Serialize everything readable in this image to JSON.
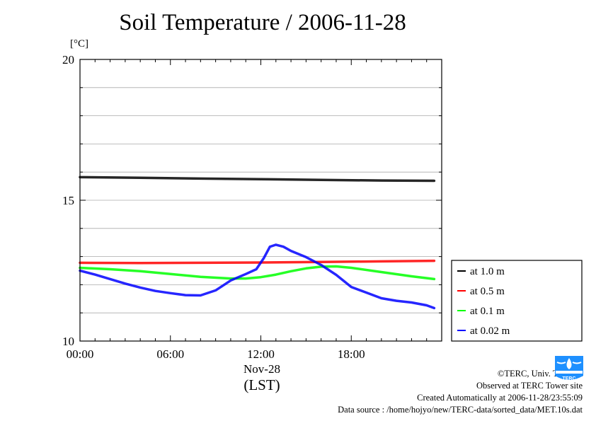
{
  "title": "Soil Temperature / 2006-11-28",
  "unit": "[°C]",
  "chart_data": {
    "type": "line",
    "title": "Soil Temperature / 2006-11-28",
    "ylabel": "[°C]",
    "xlabel": "Nov-28",
    "xlabel_sub": "(LST)",
    "ylim": [
      10,
      20
    ],
    "xlim": [
      0,
      24
    ],
    "yticks": [
      10,
      15,
      20
    ],
    "xticks": [
      0,
      6,
      12,
      18
    ],
    "xtick_labels": [
      "00:00",
      "06:00",
      "12:00",
      "18:00"
    ],
    "grid": true,
    "legend_position": "right",
    "series": [
      {
        "name": "at 1.0 m",
        "color": "#000000",
        "x": [
          0,
          4,
          8,
          12,
          16,
          20,
          23.5
        ],
        "y": [
          15.82,
          15.8,
          15.77,
          15.75,
          15.72,
          15.7,
          15.69
        ]
      },
      {
        "name": "at 0.5 m",
        "color": "#ff0000",
        "x": [
          0,
          4,
          8,
          12,
          16,
          20,
          23.5
        ],
        "y": [
          12.78,
          12.77,
          12.78,
          12.79,
          12.81,
          12.83,
          12.85
        ]
      },
      {
        "name": "at 0.1 m",
        "color": "#00ff00",
        "x": [
          0,
          2,
          4,
          6,
          8,
          10,
          11,
          12,
          13,
          14,
          15,
          16,
          17,
          18,
          20,
          22,
          23.5
        ],
        "y": [
          12.6,
          12.55,
          12.48,
          12.38,
          12.28,
          12.22,
          12.22,
          12.27,
          12.36,
          12.48,
          12.58,
          12.64,
          12.65,
          12.6,
          12.45,
          12.3,
          12.2
        ]
      },
      {
        "name": "at 0.02 m",
        "color": "#0000ff",
        "x": [
          0,
          1,
          2,
          3,
          4,
          5,
          6,
          7,
          8,
          9,
          10,
          11,
          11.7,
          12.2,
          12.6,
          13,
          13.5,
          14,
          15,
          16,
          17,
          18,
          19,
          20,
          21,
          22,
          23,
          23.5
        ],
        "y": [
          12.5,
          12.36,
          12.2,
          12.04,
          11.9,
          11.78,
          11.7,
          11.63,
          11.62,
          11.8,
          12.15,
          12.38,
          12.55,
          12.95,
          13.35,
          13.42,
          13.35,
          13.2,
          12.98,
          12.7,
          12.35,
          11.92,
          11.72,
          11.52,
          11.43,
          11.37,
          11.27,
          11.17
        ]
      }
    ]
  },
  "credits": {
    "copyright": "©TERC, Univ. Tsukuba",
    "observed": "Observed at TERC Tower site",
    "created": "Created Automatically at 2006-11-28/23:55:09",
    "source": "Data source : /home/hojyo/new/TERC-data/sorted_data/MET.10s.dat"
  },
  "logo": {
    "text": "TERC",
    "color": "#1e90ff",
    "icon": "terc-logo-icon"
  }
}
